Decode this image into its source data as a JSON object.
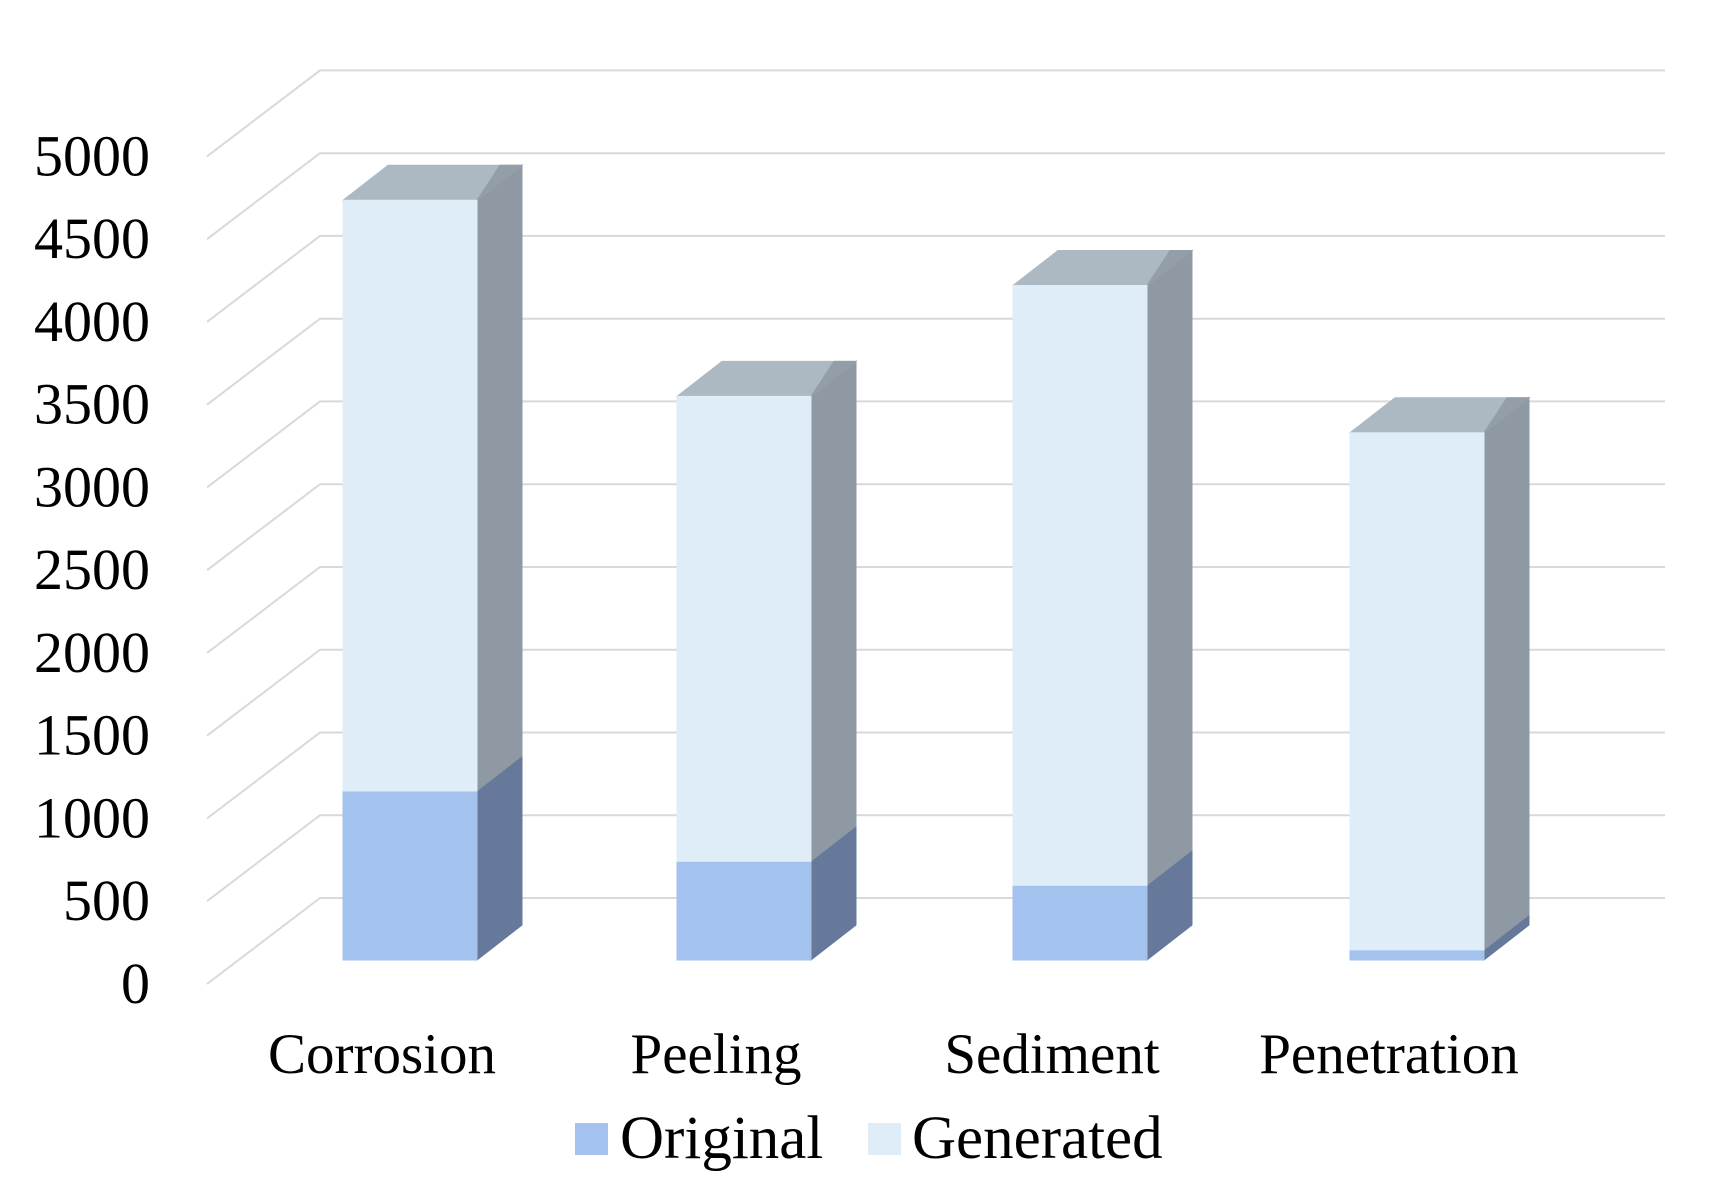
{
  "chart_data": {
    "type": "bar",
    "variant": "3d-stacked-column",
    "title": "",
    "xlabel": "",
    "ylabel": "",
    "categories": [
      "Corrosion",
      "Peeling",
      "Sediment",
      "Penetration"
    ],
    "series": [
      {
        "name": "Original",
        "color": "#A3C2ED",
        "values": [
          1015,
          590,
          445,
          55
        ]
      },
      {
        "name": "Generated",
        "color": "#DFEDF8",
        "values": [
          3575,
          2815,
          3630,
          3130
        ]
      }
    ],
    "totals": [
      4590,
      3405,
      4075,
      3185
    ],
    "ylim": [
      0,
      5000
    ],
    "y_tick_step": 500,
    "y_ticks": [
      "0",
      "500",
      "1000",
      "1500",
      "2000",
      "2500",
      "3000",
      "3500",
      "4000",
      "4500",
      "5000"
    ],
    "grid": true,
    "gridline_color": "#D9D9D9",
    "legend": {
      "position": "bottom",
      "items": [
        {
          "label": "Original",
          "color": "#A3C2ED"
        },
        {
          "label": "Generated",
          "color": "#DFEDF8"
        }
      ]
    },
    "shading": {
      "generated_side": "#8E99A3",
      "generated_top": "#ACB9C2",
      "top_dark_wedge": "#939EA8",
      "original_side": "#66799B"
    },
    "text_color": "#000000",
    "background": "#FFFFFF"
  }
}
